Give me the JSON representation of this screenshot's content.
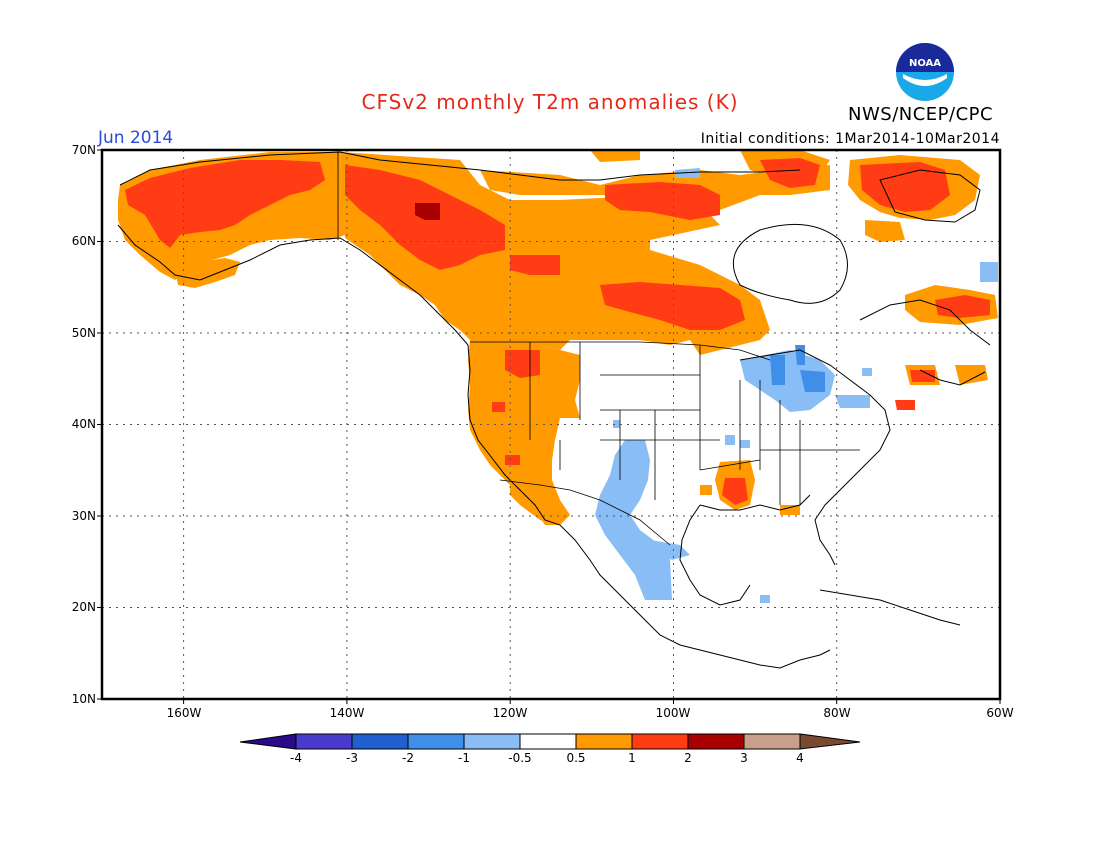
{
  "header": {
    "title": "CFSv2 monthly T2m anomalies (K)",
    "period": "Jun 2014",
    "initial_conditions": "Initial conditions: 1Mar2014-10Mar2014",
    "agency": "NWS/NCEP/CPC",
    "logo_text": "NOAA"
  },
  "map": {
    "extent": {
      "lon_min": -170,
      "lon_max": -60,
      "lat_min": 10,
      "lat_max": 70
    },
    "lat_labels": [
      "70N",
      "60N",
      "50N",
      "40N",
      "30N",
      "20N",
      "10N"
    ],
    "lon_labels": [
      "160W",
      "140W",
      "120W",
      "100W",
      "80W",
      "60W"
    ],
    "grid": "dotted"
  },
  "colorbar": {
    "labels": [
      "-4",
      "-3",
      "-2",
      "-1",
      "-0.5",
      "0.5",
      "1",
      "2",
      "3",
      "4"
    ],
    "colors": {
      "lt_neg4": "#2a0a8a",
      "neg4_neg3": "#4a3bd0",
      "neg3_neg2": "#1f5fd0",
      "neg2_neg1": "#3f8ee8",
      "neg1_neg05": "#88bdf5",
      "neg05_05": "#ffffff",
      "p05_1": "#ff9a00",
      "p1_2": "#ff3c14",
      "p2_3": "#a80000",
      "p3_4": "#c9a08c",
      "gt4": "#7a4a30"
    }
  },
  "colors": {
    "title": "#e32a1c",
    "period": "#2a4bd7",
    "warm_05_1": "#ff9a00",
    "warm_1_2": "#ff3c14",
    "warm_2_3": "#a80000",
    "cool_neg1_neg05": "#88bdf5",
    "cool_neg2_neg1": "#3f8ee8"
  }
}
